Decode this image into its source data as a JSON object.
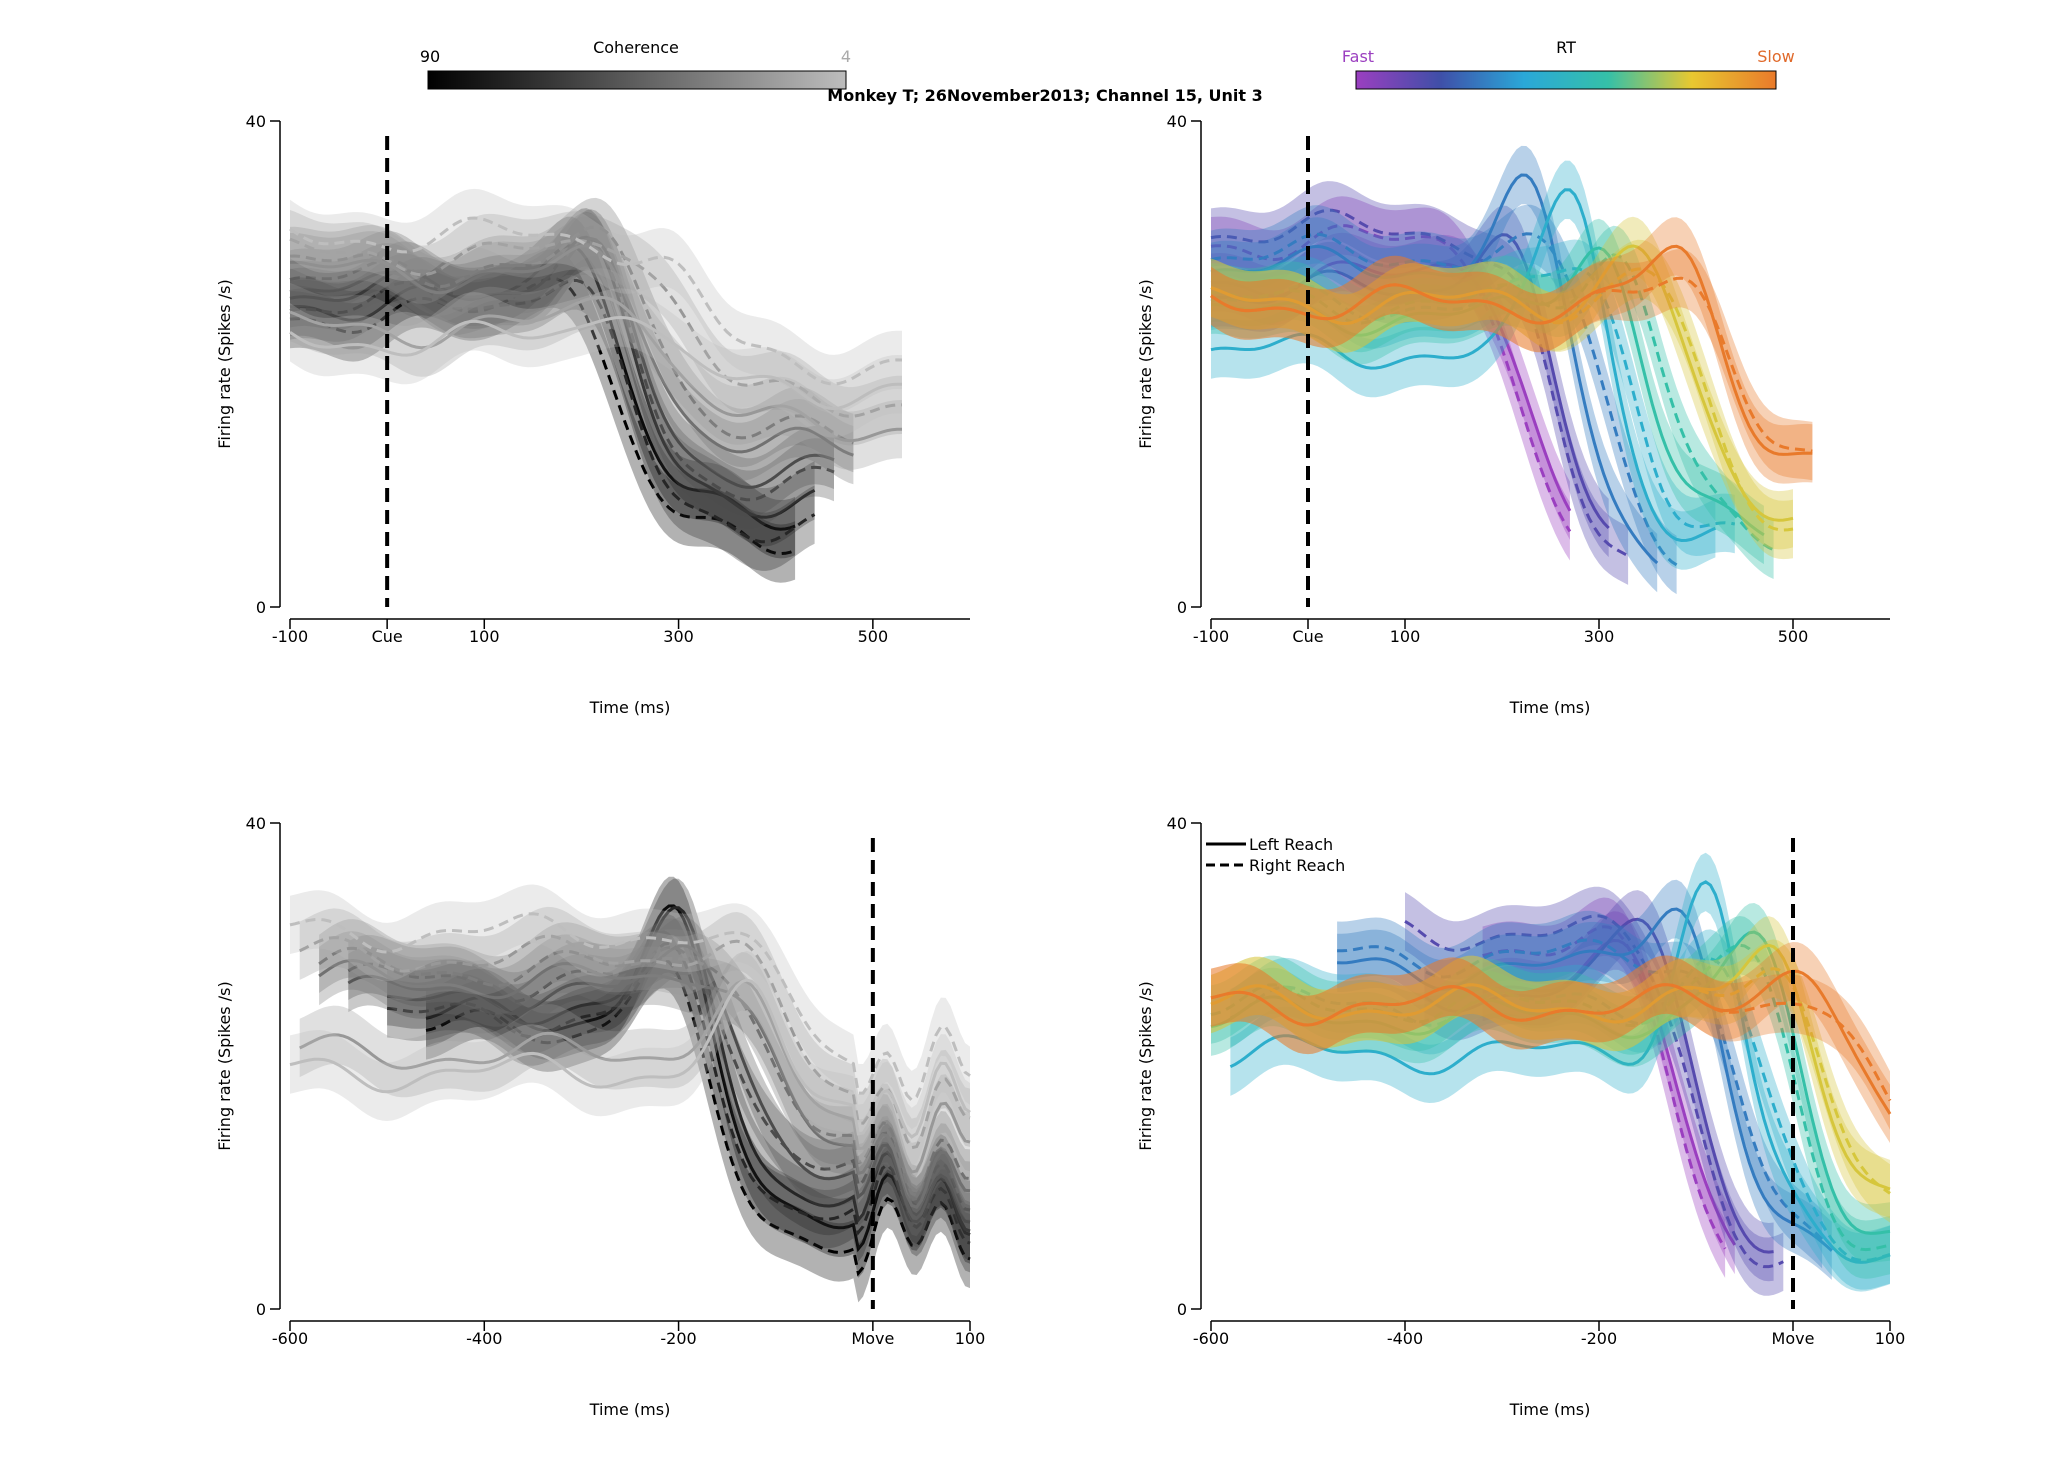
{
  "figure_title": "Monkey T; 26November2013; Channel 15, Unit 3",
  "colorbars": {
    "coherence": {
      "title": "Coherence",
      "left_label": "90",
      "right_label": "4",
      "stops": [
        "#000000",
        "#bdbdbd"
      ]
    },
    "rt": {
      "title": "RT",
      "left_label": "Fast",
      "right_label": "Slow",
      "left_label_color": "#9b3fc0",
      "right_label_color": "#e0692a",
      "stops": [
        "#9b3fc0",
        "#3f4fa8",
        "#2aa8d8",
        "#35c0a8",
        "#e8c830",
        "#e97a2b"
      ]
    }
  },
  "legend": {
    "solid_label": "Left Reach",
    "dashed_label": "Right Reach"
  },
  "colors": {
    "marker_label": "#1f1fbf",
    "axis": "#000000"
  },
  "chart_data": [
    {
      "id": "cue-coherence",
      "type": "line",
      "color_mode": "coherence",
      "xlabel": "Time (ms)",
      "ylabel": "Firing rate (Spikes /s)",
      "xlim": [
        -100,
        600
      ],
      "ylim": [
        0,
        40
      ],
      "x_ticks": [
        {
          "v": -100,
          "t": "-100"
        },
        {
          "v": 0,
          "t": "Cue",
          "marker": true
        },
        {
          "v": 100,
          "t": "100"
        },
        {
          "v": 300,
          "t": "300"
        },
        {
          "v": 500,
          "t": "500"
        }
      ],
      "y_ticks": [
        {
          "v": 0,
          "t": "0"
        },
        {
          "v": 40,
          "t": "40"
        }
      ],
      "vline": 0,
      "event": "cue",
      "x_start": -100,
      "series": [
        {
          "shade": 0.0,
          "left": true,
          "end": 420,
          "peak": 33,
          "base": 25.0,
          "low": 8,
          "drop": 250
        },
        {
          "shade": 0.0,
          "left": false,
          "end": 420,
          "peak": 30,
          "base": 24.0,
          "low": 6,
          "drop": 240
        },
        {
          "shade": 0.2,
          "left": true,
          "end": 440,
          "peak": 32,
          "base": 26.0,
          "low": 9,
          "drop": 260
        },
        {
          "shade": 0.2,
          "left": false,
          "end": 440,
          "peak": 29,
          "base": 25.0,
          "low": 7,
          "drop": 250
        },
        {
          "shade": 0.4,
          "left": true,
          "end": 460,
          "peak": 30,
          "base": 26.0,
          "low": 11,
          "drop": 270
        },
        {
          "shade": 0.4,
          "left": false,
          "end": 460,
          "peak": 30,
          "base": 27.0,
          "low": 10,
          "drop": 265
        },
        {
          "shade": 0.6,
          "left": true,
          "end": 480,
          "peak": 29,
          "base": 27.5,
          "low": 13,
          "drop": 280
        },
        {
          "shade": 0.6,
          "left": false,
          "end": 480,
          "peak": 31,
          "base": 28.0,
          "low": 14,
          "drop": 290
        },
        {
          "shade": 0.8,
          "left": true,
          "end": 530,
          "peak": 27,
          "base": 23.0,
          "low": 15,
          "drop": 300
        },
        {
          "shade": 0.8,
          "left": false,
          "end": 530,
          "peak": 31,
          "base": 29.0,
          "low": 17,
          "drop": 310
        },
        {
          "shade": 1.0,
          "left": true,
          "end": 530,
          "peak": 26,
          "base": 22.0,
          "low": 18,
          "drop": 300
        },
        {
          "shade": 1.0,
          "left": false,
          "end": 530,
          "peak": 30,
          "base": 30.5,
          "low": 20,
          "drop": 320
        }
      ]
    },
    {
      "id": "cue-rt",
      "type": "line",
      "color_mode": "rt",
      "xlabel": "Time (ms)",
      "ylabel": "Firing rate (Spikes /s)",
      "xlim": [
        -100,
        600
      ],
      "ylim": [
        0,
        40
      ],
      "x_ticks": [
        {
          "v": -100,
          "t": "-100"
        },
        {
          "v": 0,
          "t": "Cue",
          "marker": true
        },
        {
          "v": 100,
          "t": "100"
        },
        {
          "v": 300,
          "t": "300"
        },
        {
          "v": 500,
          "t": "500"
        }
      ],
      "y_ticks": [
        {
          "v": 0,
          "t": "0"
        },
        {
          "v": 40,
          "t": "40"
        }
      ],
      "vline": 0,
      "event": "cue",
      "x_start": -100,
      "series": [
        {
          "shade": 0.0,
          "left": true,
          "end": 270,
          "peak": 30,
          "base": 27,
          "low": 4,
          "drop": 230,
          "rt_end": 290
        },
        {
          "shade": 0.0,
          "left": false,
          "end": 270,
          "peak": 31,
          "base": 30,
          "low": 3,
          "drop": 220,
          "rt_end": 280
        },
        {
          "shade": 0.15,
          "left": true,
          "end": 310,
          "peak": 33,
          "base": 26,
          "low": 4,
          "drop": 260,
          "rt_end": 310
        },
        {
          "shade": 0.15,
          "left": false,
          "end": 330,
          "peak": 31,
          "base": 31,
          "low": 3,
          "drop": 250,
          "rt_end": 330
        },
        {
          "shade": 0.3,
          "left": true,
          "end": 360,
          "peak": 36,
          "base": 28,
          "low": 4,
          "drop": 285,
          "rt_end": 360
        },
        {
          "shade": 0.3,
          "left": false,
          "end": 380,
          "peak": 30,
          "base": 29,
          "low": 4,
          "drop": 310,
          "rt_end": 380
        },
        {
          "shade": 0.45,
          "left": true,
          "end": 420,
          "peak": 37,
          "base": 21,
          "low": 5,
          "drop": 330,
          "rt_end": 420
        },
        {
          "shade": 0.45,
          "left": false,
          "end": 440,
          "peak": 30,
          "base": 25,
          "low": 5,
          "drop": 345,
          "rt_end": 440
        },
        {
          "shade": 0.6,
          "left": true,
          "end": 470,
          "peak": 32,
          "base": 24,
          "low": 6,
          "drop": 360,
          "rt_end": 470
        },
        {
          "shade": 0.6,
          "left": false,
          "end": 480,
          "peak": 31,
          "base": 25,
          "low": 5,
          "drop": 380,
          "rt_end": 480
        },
        {
          "shade": 0.78,
          "left": true,
          "end": 500,
          "peak": 31,
          "base": 25,
          "low": 8,
          "drop": 400,
          "rt_end": 500
        },
        {
          "shade": 0.78,
          "left": false,
          "end": 500,
          "peak": 29,
          "base": 25,
          "low": 7,
          "drop": 410,
          "rt_end": 500
        },
        {
          "shade": 1.0,
          "left": true,
          "end": 520,
          "peak": 30,
          "base": 25,
          "low": 12,
          "drop": 440,
          "rt_end": 520
        },
        {
          "shade": 1.0,
          "left": false,
          "end": 520,
          "peak": 27,
          "base": 25,
          "low": 12,
          "drop": 450,
          "rt_end": 520
        }
      ]
    },
    {
      "id": "move-coherence",
      "type": "line",
      "color_mode": "coherence",
      "xlabel": "Time (ms)",
      "ylabel": "Firing rate (Spikes /s)",
      "xlim": [
        -600,
        100
      ],
      "ylim": [
        0,
        40
      ],
      "x_ticks": [
        {
          "v": -600,
          "t": "-600"
        },
        {
          "v": -400,
          "t": "-400"
        },
        {
          "v": -200,
          "t": "-200"
        },
        {
          "v": 0,
          "t": "Move",
          "marker": true
        },
        {
          "v": 100,
          "t": "100"
        }
      ],
      "y_ticks": [
        {
          "v": 0,
          "t": "0"
        },
        {
          "v": 40,
          "t": "40"
        }
      ],
      "vline": 0,
      "event": "move",
      "x_end": 100,
      "series": [
        {
          "shade": 0.0,
          "left": true,
          "start": -460,
          "peak": 34,
          "base": 24,
          "low": 8,
          "drop": -150
        },
        {
          "shade": 0.0,
          "left": false,
          "start": -460,
          "peak": 30,
          "base": 23,
          "low": 6,
          "drop": -160
        },
        {
          "shade": 0.2,
          "left": true,
          "start": -500,
          "peak": 33,
          "base": 25,
          "low": 9,
          "drop": -140
        },
        {
          "shade": 0.2,
          "left": false,
          "start": -500,
          "peak": 30,
          "base": 24,
          "low": 8,
          "drop": -150
        },
        {
          "shade": 0.4,
          "left": true,
          "start": -540,
          "peak": 31,
          "base": 26,
          "low": 10,
          "drop": -120
        },
        {
          "shade": 0.4,
          "left": false,
          "start": -540,
          "peak": 30,
          "base": 27,
          "low": 11,
          "drop": -130
        },
        {
          "shade": 0.6,
          "left": true,
          "start": -570,
          "peak": 29,
          "base": 27,
          "low": 12,
          "drop": -100
        },
        {
          "shade": 0.6,
          "left": false,
          "start": -570,
          "peak": 31,
          "base": 28,
          "low": 13,
          "drop": -110
        },
        {
          "shade": 0.8,
          "left": true,
          "start": -590,
          "peak": 27,
          "base": 21,
          "low": 15,
          "drop": -80
        },
        {
          "shade": 0.8,
          "left": false,
          "start": -590,
          "peak": 31,
          "base": 29,
          "low": 17,
          "drop": -90
        },
        {
          "shade": 1.0,
          "left": true,
          "start": -600,
          "peak": 26,
          "base": 19.5,
          "low": 17,
          "drop": -70
        },
        {
          "shade": 1.0,
          "left": false,
          "start": -600,
          "peak": 30,
          "base": 31,
          "low": 20,
          "drop": -80
        }
      ]
    },
    {
      "id": "move-rt",
      "type": "line",
      "color_mode": "rt",
      "xlabel": "Time (ms)",
      "ylabel": "Firing rate (Spikes /s)",
      "xlim": [
        -600,
        100
      ],
      "ylim": [
        0,
        40
      ],
      "x_ticks": [
        {
          "v": -600,
          "t": "-600"
        },
        {
          "v": -400,
          "t": "-400"
        },
        {
          "v": -200,
          "t": "-200"
        },
        {
          "v": 0,
          "t": "Move",
          "marker": true
        },
        {
          "v": 100,
          "t": "100"
        }
      ],
      "y_ticks": [
        {
          "v": 0,
          "t": "0"
        },
        {
          "v": 40,
          "t": "40"
        }
      ],
      "vline": 0,
      "event": "move",
      "x_end": 100,
      "has_legend": true,
      "series": [
        {
          "shade": 0.0,
          "left": true,
          "start": -320,
          "end": -60,
          "peak": 30,
          "base": 27,
          "low": 4,
          "drop": -110
        },
        {
          "shade": 0.0,
          "left": false,
          "start": -320,
          "end": -70,
          "peak": 31,
          "base": 30,
          "low": 3,
          "drop": -120
        },
        {
          "shade": 0.15,
          "left": true,
          "start": -380,
          "end": -20,
          "peak": 34,
          "base": 26,
          "low": 4,
          "drop": -90
        },
        {
          "shade": 0.15,
          "left": false,
          "start": -400,
          "end": -10,
          "peak": 31,
          "base": 31,
          "low": 3,
          "drop": -100
        },
        {
          "shade": 0.3,
          "left": true,
          "start": -470,
          "end": 40,
          "peak": 36,
          "base": 28,
          "low": 4,
          "drop": -60
        },
        {
          "shade": 0.3,
          "left": false,
          "start": -470,
          "end": 30,
          "peak": 30,
          "base": 29,
          "low": 4,
          "drop": -50
        },
        {
          "shade": 0.45,
          "left": true,
          "start": -580,
          "end": 100,
          "peak": 37,
          "base": 21,
          "low": 5,
          "drop": -30
        },
        {
          "shade": 0.45,
          "left": false,
          "start": -580,
          "end": 100,
          "peak": 30,
          "base": 25,
          "low": 5,
          "drop": -20
        },
        {
          "shade": 0.6,
          "left": true,
          "start": -600,
          "end": 100,
          "peak": 32,
          "base": 24,
          "low": 6,
          "drop": 20
        },
        {
          "shade": 0.6,
          "left": false,
          "start": -600,
          "end": 100,
          "peak": 31,
          "base": 25,
          "low": 5,
          "drop": 10
        },
        {
          "shade": 0.78,
          "left": true,
          "start": -600,
          "end": 100,
          "peak": 31,
          "base": 25,
          "low": 8,
          "drop": 40
        },
        {
          "shade": 0.78,
          "left": false,
          "start": -600,
          "end": 100,
          "peak": 29,
          "base": 25,
          "low": 7,
          "drop": 50
        },
        {
          "shade": 1.0,
          "left": true,
          "start": -600,
          "end": 100,
          "peak": 30,
          "base": 25,
          "low": 12,
          "drop": 70
        },
        {
          "shade": 1.0,
          "left": false,
          "start": -600,
          "end": 100,
          "peak": 27,
          "base": 25,
          "low": 12,
          "drop": 80
        }
      ]
    }
  ]
}
